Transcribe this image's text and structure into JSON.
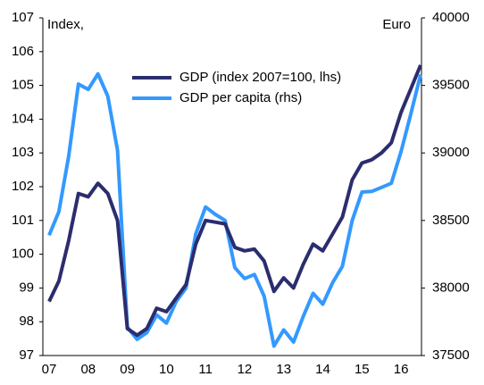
{
  "chart_data": {
    "type": "line",
    "axis_title": "Index,",
    "y2_axis_title": "Euro",
    "categories": [
      "07",
      null,
      null,
      null,
      "08",
      null,
      null,
      null,
      "09",
      null,
      null,
      null,
      "10",
      null,
      null,
      null,
      "11",
      null,
      null,
      null,
      "12",
      null,
      null,
      null,
      "13",
      null,
      null,
      null,
      "14",
      null,
      null,
      null,
      "15",
      null,
      null,
      null,
      "16",
      null,
      null
    ],
    "series": [
      {
        "name": "GDP (index 2007=100, lhs)",
        "color": "#2b2d6e",
        "values": [
          98.6,
          99.2,
          100.4,
          101.8,
          101.7,
          102.1,
          101.8,
          101.0,
          97.8,
          97.6,
          97.8,
          98.4,
          98.3,
          98.7,
          99.1,
          100.3,
          101.0,
          100.95,
          100.9,
          100.2,
          100.1,
          100.15,
          99.8,
          98.9,
          99.3,
          99.0,
          99.7,
          100.3,
          100.1,
          100.6,
          101.1,
          102.2,
          102.7,
          102.8,
          103.0,
          103.3,
          104.2,
          104.9,
          105.6
        ]
      },
      {
        "name": "GDP per capita (rhs)",
        "color": "#3399ff",
        "axis": "y2",
        "values": [
          38390,
          38565,
          38975,
          39510,
          39470,
          39585,
          39420,
          39020,
          37710,
          37620,
          37670,
          37800,
          37740,
          37900,
          38000,
          38400,
          38600,
          38545,
          38500,
          38150,
          38070,
          38100,
          37940,
          37570,
          37690,
          37600,
          37790,
          37960,
          37880,
          38040,
          38160,
          38500,
          38710,
          38715,
          38745,
          38775,
          39010,
          39290,
          39580
        ]
      }
    ],
    "ylim": [
      97,
      107
    ],
    "yticks": [
      97,
      98,
      99,
      100,
      101,
      102,
      103,
      104,
      105,
      106,
      107
    ],
    "y2lim": [
      37500,
      40000
    ],
    "y2ticks": [
      37500,
      38000,
      38500,
      39000,
      39500,
      40000
    ]
  }
}
